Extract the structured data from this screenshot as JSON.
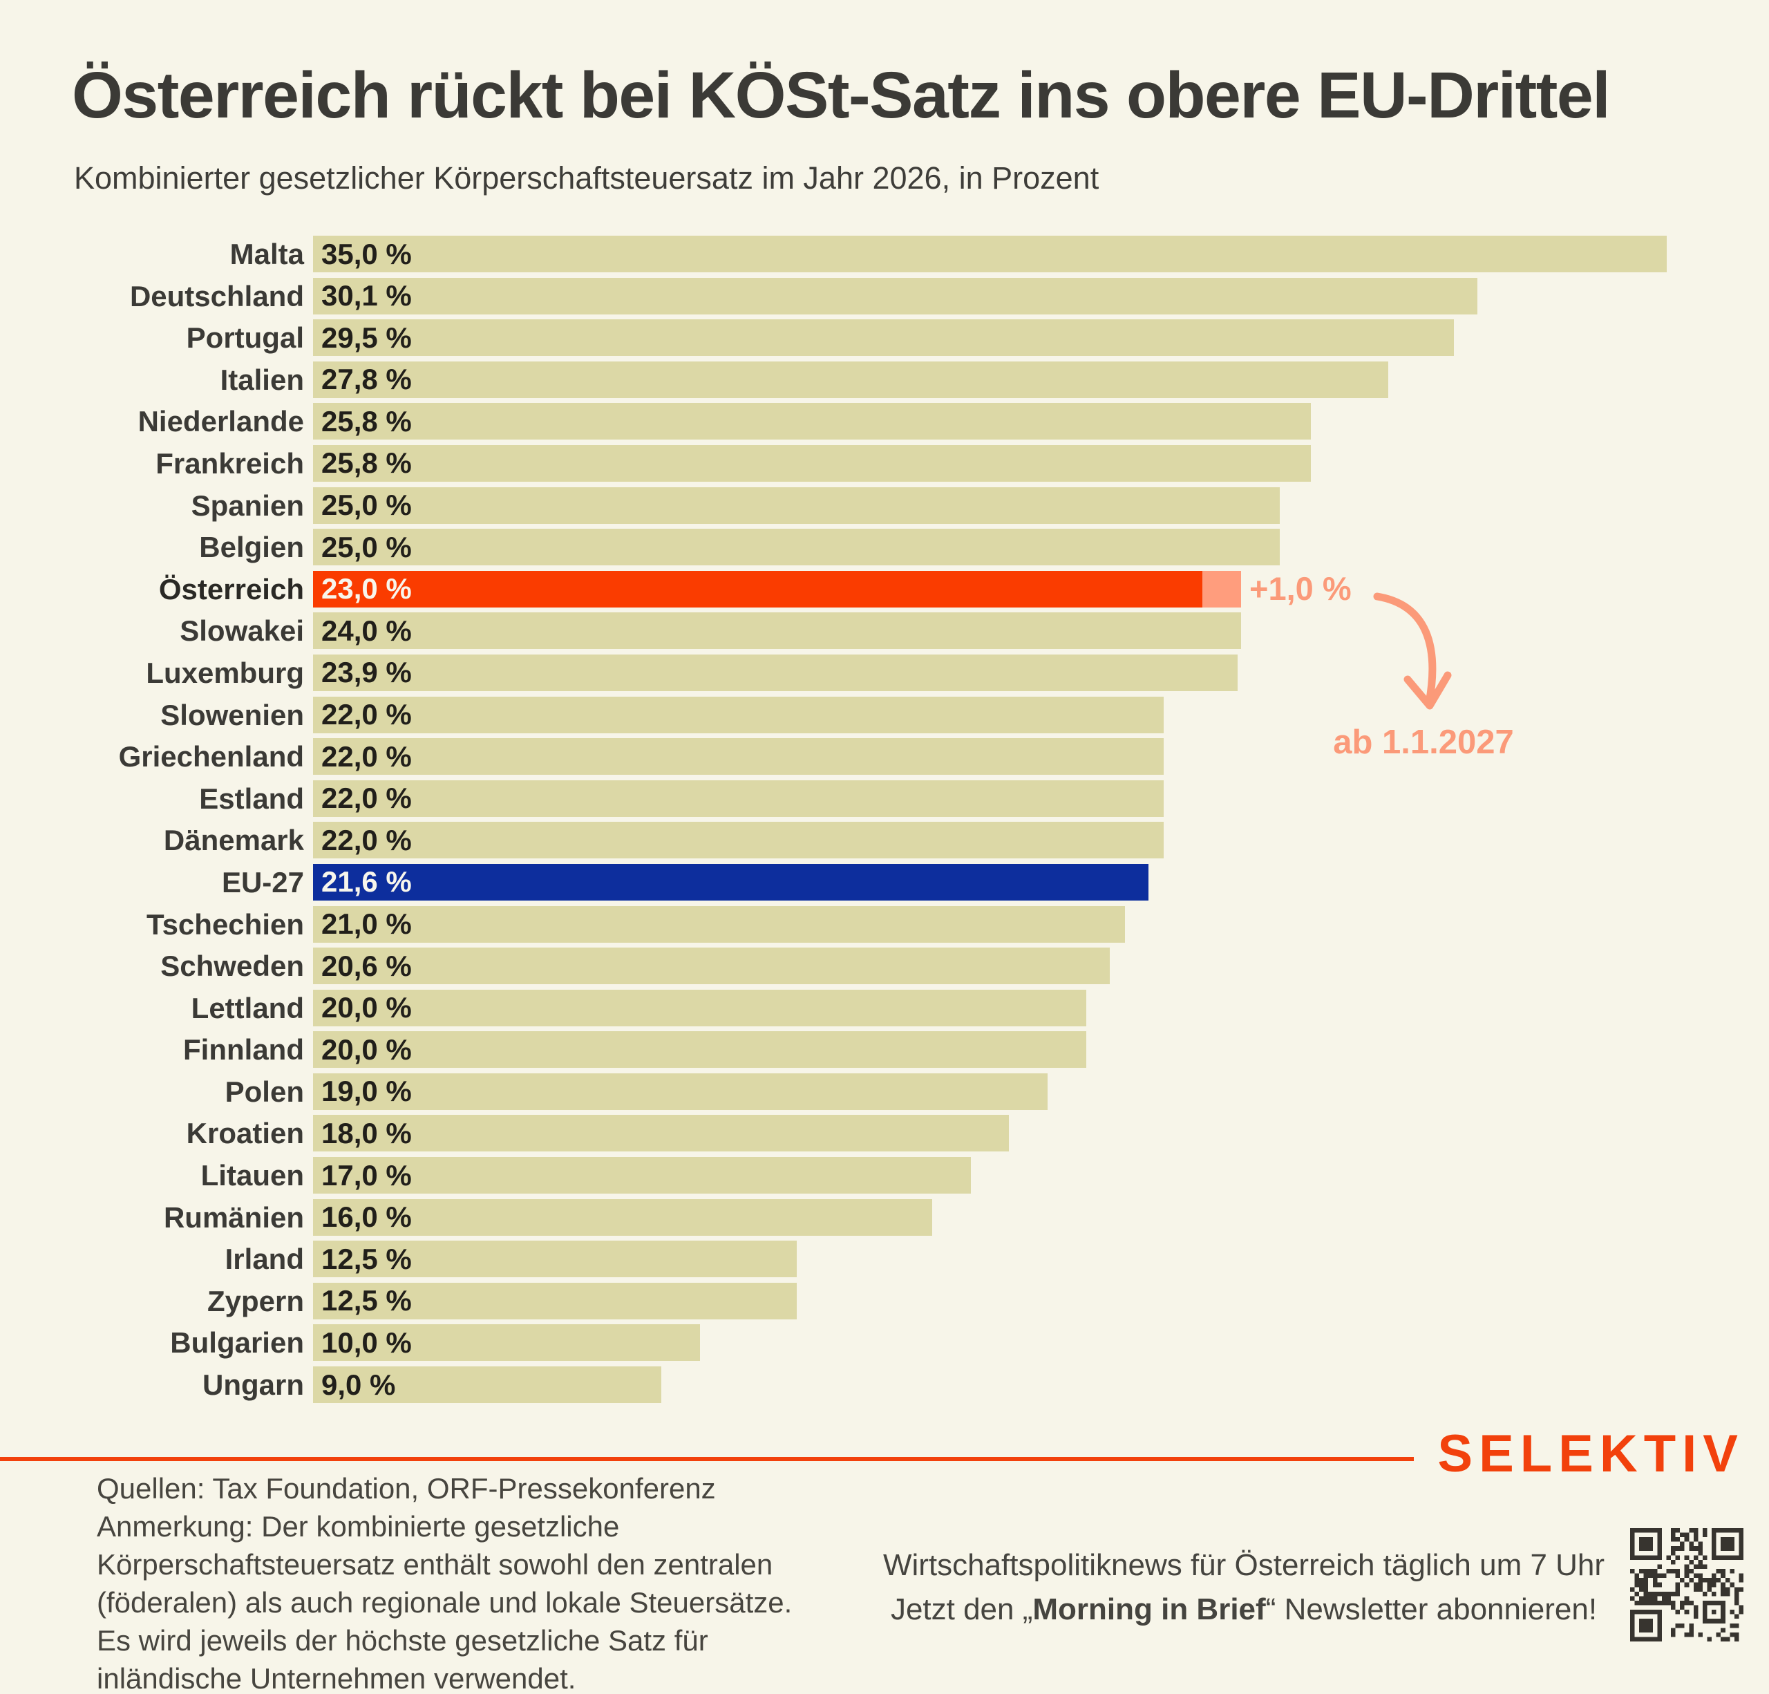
{
  "chart_data": {
    "type": "bar",
    "orientation": "horizontal",
    "title": "Österreich rückt bei KÖSt-Satz ins obere EU-Drittel",
    "subtitle": "Kombinierter gesetzlicher Körperschaftsteuersatz im Jahr 2026, in Prozent",
    "unit": "%",
    "xlim": [
      0,
      35
    ],
    "grid": false,
    "legend": false,
    "categories": [
      "Malta",
      "Deutschland",
      "Portugal",
      "Italien",
      "Niederlande",
      "Frankreich",
      "Spanien",
      "Belgien",
      "Österreich",
      "Slowakei",
      "Luxemburg",
      "Slowenien",
      "Griechenland",
      "Estland",
      "Dänemark",
      "EU-27",
      "Tschechien",
      "Schweden",
      "Lettland",
      "Finnland",
      "Polen",
      "Kroatien",
      "Litauen",
      "Rumänien",
      "Irland",
      "Zypern",
      "Bulgarien",
      "Ungarn"
    ],
    "values": [
      35.0,
      30.1,
      29.5,
      27.8,
      25.8,
      25.8,
      25.0,
      25.0,
      23.0,
      24.0,
      23.9,
      22.0,
      22.0,
      22.0,
      22.0,
      21.6,
      21.0,
      20.6,
      20.0,
      20.0,
      19.0,
      18.0,
      17.0,
      16.0,
      12.5,
      12.5,
      10.0,
      9.0
    ],
    "rows": [
      {
        "country": "Malta",
        "value": 35.0,
        "value_label": "35,0 %",
        "style": "default"
      },
      {
        "country": "Deutschland",
        "value": 30.1,
        "value_label": "30,1 %",
        "style": "default"
      },
      {
        "country": "Portugal",
        "value": 29.5,
        "value_label": "29,5 %",
        "style": "default"
      },
      {
        "country": "Italien",
        "value": 27.8,
        "value_label": "27,8 %",
        "style": "default"
      },
      {
        "country": "Niederlande",
        "value": 25.8,
        "value_label": "25,8 %",
        "style": "default"
      },
      {
        "country": "Frankreich",
        "value": 25.8,
        "value_label": "25,8 %",
        "style": "default"
      },
      {
        "country": "Spanien",
        "value": 25.0,
        "value_label": "25,0 %",
        "style": "default"
      },
      {
        "country": "Belgien",
        "value": 25.0,
        "value_label": "25,0 %",
        "style": "default"
      },
      {
        "country": "Österreich",
        "value": 23.0,
        "value_label": "23,0 %",
        "style": "austria",
        "future_value": 24.0,
        "emphasis": true
      },
      {
        "country": "Slowakei",
        "value": 24.0,
        "value_label": "24,0 %",
        "style": "default"
      },
      {
        "country": "Luxemburg",
        "value": 23.9,
        "value_label": "23,9 %",
        "style": "default"
      },
      {
        "country": "Slowenien",
        "value": 22.0,
        "value_label": "22,0 %",
        "style": "default"
      },
      {
        "country": "Griechenland",
        "value": 22.0,
        "value_label": "22,0 %",
        "style": "default"
      },
      {
        "country": "Estland",
        "value": 22.0,
        "value_label": "22,0 %",
        "style": "default"
      },
      {
        "country": "Dänemark",
        "value": 22.0,
        "value_label": "22,0 %",
        "style": "default"
      },
      {
        "country": "EU-27",
        "value": 21.6,
        "value_label": "21,6 %",
        "style": "eu"
      },
      {
        "country": "Tschechien",
        "value": 21.0,
        "value_label": "21,0 %",
        "style": "default"
      },
      {
        "country": "Schweden",
        "value": 20.6,
        "value_label": "20,6 %",
        "style": "default"
      },
      {
        "country": "Lettland",
        "value": 20.0,
        "value_label": "20,0 %",
        "style": "default"
      },
      {
        "country": "Finnland",
        "value": 20.0,
        "value_label": "20,0 %",
        "style": "default"
      },
      {
        "country": "Polen",
        "value": 19.0,
        "value_label": "19,0 %",
        "style": "default"
      },
      {
        "country": "Kroatien",
        "value": 18.0,
        "value_label": "18,0 %",
        "style": "default"
      },
      {
        "country": "Litauen",
        "value": 17.0,
        "value_label": "17,0 %",
        "style": "default"
      },
      {
        "country": "Rumänien",
        "value": 16.0,
        "value_label": "16,0 %",
        "style": "default"
      },
      {
        "country": "Irland",
        "value": 12.5,
        "value_label": "12,5 %",
        "style": "default"
      },
      {
        "country": "Zypern",
        "value": 12.5,
        "value_label": "12,5 %",
        "style": "default"
      },
      {
        "country": "Bulgarien",
        "value": 10.0,
        "value_label": "10,0 %",
        "style": "default"
      },
      {
        "country": "Ungarn",
        "value": 9.0,
        "value_label": "9,0 %",
        "style": "default"
      }
    ],
    "annotation": {
      "delta_label": "+1,0 %",
      "date_label": "ab 1.1.2027"
    },
    "colors": {
      "background": "#f7f5e9",
      "bar_default": "#dcd8a6",
      "bar_austria": "#fa3c00",
      "bar_austria_extension": "#ff9d7d",
      "bar_eu": "#0d2e9d",
      "annotation_text": "#fb9a79",
      "label_text": "#3b3a36",
      "value_text": "#211f1a",
      "accent_logo": "#f2410c"
    }
  },
  "footer": {
    "sources": "Quellen: Tax Foundation, ORF-Pressekonferenz",
    "note_lines": [
      "Anmerkung: Der kombinierte gesetzliche",
      "Körperschaftsteuersatz enthält sowohl den zentralen",
      "(föderalen) als auch regionale und lokale Steuersätze.",
      "Es wird jeweils der höchste gesetzliche Satz für",
      "inländische Unternehmen verwendet."
    ],
    "newsletter_line1": "Wirtschaftspolitiknews für Österreich täglich um 7 Uhr",
    "newsletter_line2": {
      "prefix": "Jetzt den „",
      "bold": "Morning in Brief",
      "suffix": "“ Newsletter abonnieren!"
    },
    "logo": "SELEKTIV",
    "qr": "qr-code"
  }
}
